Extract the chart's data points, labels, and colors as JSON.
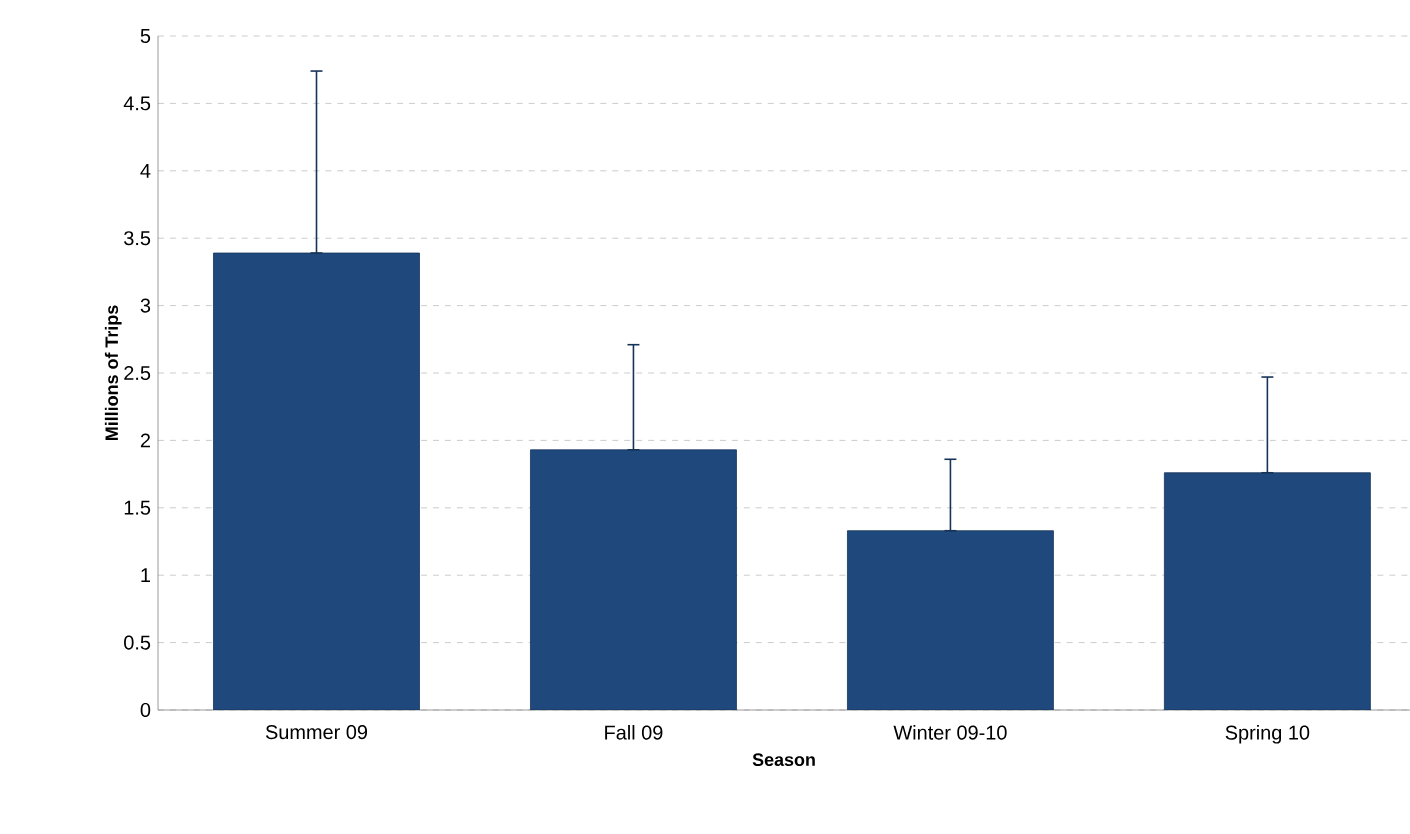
{
  "chart_data": {
    "type": "bar",
    "xlabel": "Season",
    "ylabel": "Millions of Trips",
    "categories": [
      "Summer 09",
      "Fall 09",
      "Winter 09-10",
      "Spring 10"
    ],
    "values": [
      3.39,
      1.93,
      1.33,
      1.76
    ],
    "errors": [
      [
        3.39,
        4.74
      ],
      [
        1.93,
        2.71
      ],
      [
        1.33,
        1.86
      ],
      [
        1.76,
        2.47
      ]
    ],
    "color": "#1f497d",
    "ylim": [
      0,
      5
    ],
    "yticks": [
      0,
      0.5,
      1,
      1.5,
      2,
      2.5,
      3,
      3.5,
      4,
      4.5,
      5
    ],
    "grid": "y"
  }
}
